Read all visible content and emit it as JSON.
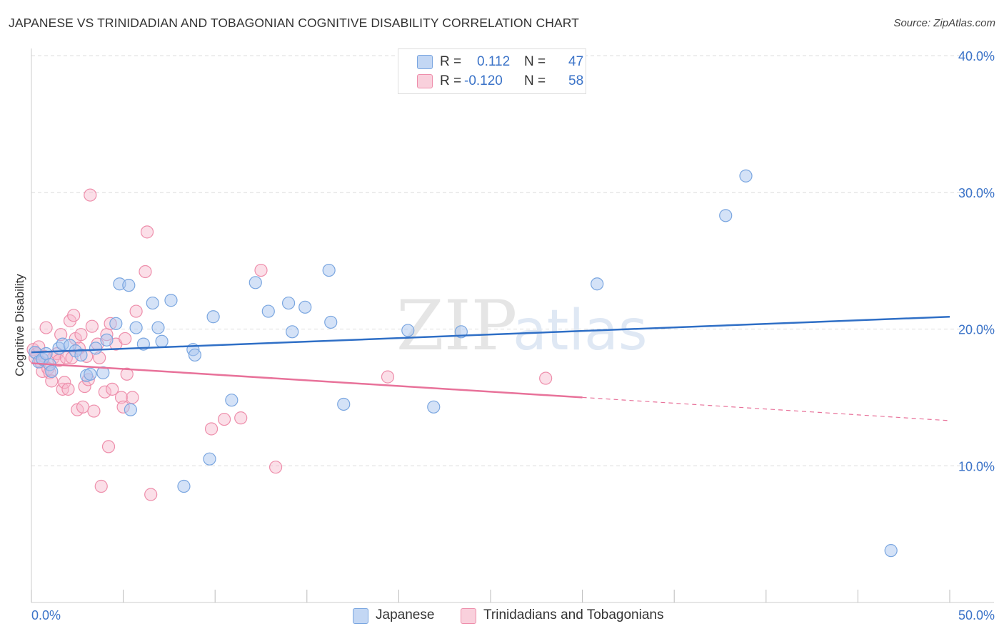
{
  "header": {
    "title": "JAPANESE VS TRINIDADIAN AND TOBAGONIAN COGNITIVE DISABILITY CORRELATION CHART",
    "source": "Source: ZipAtlas.com"
  },
  "watermark": {
    "part1": "ZIP",
    "part2": "atlas"
  },
  "legend": {
    "rows": [
      {
        "r_label": "R =",
        "r_value": "0.112",
        "n_label": "N =",
        "n_value": "47",
        "color": "#a9c6ef"
      },
      {
        "r_label": "R =",
        "r_value": "-0.120",
        "n_label": "N =",
        "n_value": "58",
        "color": "#f6b8cb"
      }
    ]
  },
  "bottom_legend": {
    "japanese": "Japanese",
    "trinidadian": "Trinidadians and Tobagonians"
  },
  "colors": {
    "blue_fill": "#a9c6ef",
    "blue_stroke": "#7aa6e0",
    "blue_line": "#2f6fc6",
    "pink_fill": "#f6b8cb",
    "pink_stroke": "#ee8eab",
    "pink_line": "#e8729a",
    "tick_label": "#3b73c8",
    "grid": "#dcdcdc"
  },
  "chart_data": {
    "type": "scatter",
    "title": "JAPANESE VS TRINIDADIAN AND TOBAGONIAN COGNITIVE DISABILITY CORRELATION CHART",
    "xlabel": "",
    "ylabel": "Cognitive Disability",
    "xlim": [
      0,
      50
    ],
    "ylim": [
      0,
      40
    ],
    "x_tick_labels": [
      "0.0%",
      "50.0%"
    ],
    "y_ticks": [
      10,
      20,
      30,
      40
    ],
    "y_tick_labels": [
      "10.0%",
      "20.0%",
      "30.0%",
      "40.0%"
    ],
    "grid": true,
    "legend_position": "top-center",
    "series": [
      {
        "name": "Japanese",
        "color": "#a9c6ef",
        "r": 0.112,
        "n": 47,
        "trend": {
          "x": [
            0,
            50
          ],
          "y": [
            18.3,
            20.9
          ]
        },
        "points": [
          [
            0.2,
            18.3
          ],
          [
            0.4,
            17.6
          ],
          [
            0.6,
            17.8
          ],
          [
            0.8,
            18.2
          ],
          [
            1.0,
            17.4
          ],
          [
            1.1,
            16.9
          ],
          [
            1.5,
            18.6
          ],
          [
            1.7,
            18.9
          ],
          [
            2.1,
            18.8
          ],
          [
            2.4,
            18.4
          ],
          [
            2.7,
            18.1
          ],
          [
            3.0,
            16.6
          ],
          [
            3.2,
            16.7
          ],
          [
            3.5,
            18.6
          ],
          [
            3.9,
            16.8
          ],
          [
            4.1,
            19.2
          ],
          [
            4.6,
            20.4
          ],
          [
            4.8,
            23.3
          ],
          [
            5.3,
            23.2
          ],
          [
            5.4,
            14.1
          ],
          [
            5.7,
            20.1
          ],
          [
            6.1,
            18.9
          ],
          [
            6.6,
            21.9
          ],
          [
            6.9,
            20.1
          ],
          [
            7.1,
            19.1
          ],
          [
            7.6,
            22.1
          ],
          [
            8.3,
            8.5
          ],
          [
            8.8,
            18.5
          ],
          [
            8.9,
            18.1
          ],
          [
            9.7,
            10.5
          ],
          [
            9.9,
            20.9
          ],
          [
            10.9,
            14.8
          ],
          [
            12.2,
            23.4
          ],
          [
            12.9,
            21.3
          ],
          [
            14.0,
            21.9
          ],
          [
            14.2,
            19.8
          ],
          [
            14.9,
            21.6
          ],
          [
            16.2,
            24.3
          ],
          [
            16.3,
            20.5
          ],
          [
            17.0,
            14.5
          ],
          [
            20.5,
            19.9
          ],
          [
            21.9,
            14.3
          ],
          [
            23.4,
            19.8
          ],
          [
            30.8,
            23.3
          ],
          [
            37.8,
            28.3
          ],
          [
            38.9,
            31.2
          ],
          [
            46.8,
            3.8
          ]
        ]
      },
      {
        "name": "Trinidadians and Tobagonians",
        "color": "#f6b8cb",
        "r": -0.12,
        "n": 58,
        "trend": {
          "x": [
            0,
            30
          ],
          "y": [
            17.5,
            15.0
          ]
        },
        "trend_dashed": {
          "x": [
            30,
            50
          ],
          "y": [
            15.0,
            13.3
          ]
        },
        "points": [
          [
            0.1,
            18.5
          ],
          [
            0.2,
            17.9
          ],
          [
            0.3,
            18.2
          ],
          [
            0.4,
            18.7
          ],
          [
            0.5,
            17.6
          ],
          [
            0.6,
            16.9
          ],
          [
            0.7,
            18.0
          ],
          [
            0.8,
            20.1
          ],
          [
            0.9,
            17.1
          ],
          [
            1.0,
            16.8
          ],
          [
            1.1,
            16.2
          ],
          [
            1.2,
            17.9
          ],
          [
            1.4,
            18.2
          ],
          [
            1.5,
            17.7
          ],
          [
            1.6,
            19.6
          ],
          [
            1.7,
            15.6
          ],
          [
            1.8,
            16.1
          ],
          [
            1.9,
            17.9
          ],
          [
            2.0,
            15.6
          ],
          [
            2.1,
            20.6
          ],
          [
            2.2,
            17.9
          ],
          [
            2.3,
            21.0
          ],
          [
            2.4,
            19.3
          ],
          [
            2.5,
            14.1
          ],
          [
            2.6,
            18.6
          ],
          [
            2.7,
            19.6
          ],
          [
            2.8,
            14.3
          ],
          [
            2.9,
            15.8
          ],
          [
            3.0,
            18.0
          ],
          [
            3.1,
            16.3
          ],
          [
            3.2,
            29.8
          ],
          [
            3.3,
            20.2
          ],
          [
            3.4,
            14.0
          ],
          [
            3.6,
            18.9
          ],
          [
            3.7,
            17.9
          ],
          [
            3.8,
            8.5
          ],
          [
            4.0,
            15.4
          ],
          [
            4.1,
            19.6
          ],
          [
            4.2,
            11.4
          ],
          [
            4.3,
            20.4
          ],
          [
            4.4,
            15.6
          ],
          [
            4.6,
            18.9
          ],
          [
            4.9,
            15.0
          ],
          [
            5.0,
            14.3
          ],
          [
            5.1,
            19.3
          ],
          [
            5.2,
            16.7
          ],
          [
            5.5,
            15.0
          ],
          [
            5.7,
            21.3
          ],
          [
            6.2,
            24.2
          ],
          [
            6.3,
            27.1
          ],
          [
            6.5,
            7.9
          ],
          [
            9.8,
            12.7
          ],
          [
            10.5,
            13.4
          ],
          [
            11.4,
            13.5
          ],
          [
            12.5,
            24.3
          ],
          [
            13.3,
            9.9
          ],
          [
            19.4,
            16.5
          ],
          [
            28.0,
            16.4
          ]
        ]
      }
    ]
  }
}
